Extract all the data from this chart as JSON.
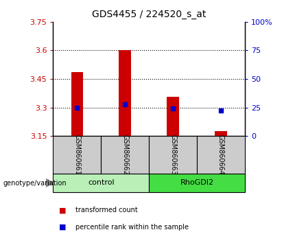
{
  "title": "GDS4455 / 224520_s_at",
  "samples": [
    "GSM860661",
    "GSM860662",
    "GSM860663",
    "GSM860664"
  ],
  "bar_values": [
    3.485,
    3.6,
    3.355,
    3.175
  ],
  "percentile_values": [
    3.3,
    3.315,
    3.295,
    3.285
  ],
  "bar_bottom": 3.15,
  "ylim_left": [
    3.15,
    3.75
  ],
  "ylim_right": [
    0,
    100
  ],
  "yticks_left": [
    3.15,
    3.3,
    3.45,
    3.6,
    3.75
  ],
  "ytick_labels_left": [
    "3.15",
    "3.3",
    "3.45",
    "3.6",
    "3.75"
  ],
  "yticks_right": [
    0,
    25,
    50,
    75,
    100
  ],
  "ytick_labels_right": [
    "0",
    "25",
    "50",
    "75",
    "100%"
  ],
  "groups": [
    {
      "label": "control",
      "samples": [
        0,
        1
      ],
      "color": "#b8f0b8"
    },
    {
      "label": "RhoGDI2",
      "samples": [
        2,
        3
      ],
      "color": "#44dd44"
    }
  ],
  "bar_color": "#cc0000",
  "dot_color": "#0000cc",
  "bar_width": 0.25,
  "genotype_label": "genotype/variation",
  "legend_items": [
    {
      "color": "#cc0000",
      "label": "transformed count"
    },
    {
      "color": "#0000cc",
      "label": "percentile rank within the sample"
    }
  ],
  "grid_linestyle": "dotted",
  "sample_box_color": "#cccccc",
  "tick_color_left": "#cc0000",
  "tick_color_right": "#0000cc"
}
